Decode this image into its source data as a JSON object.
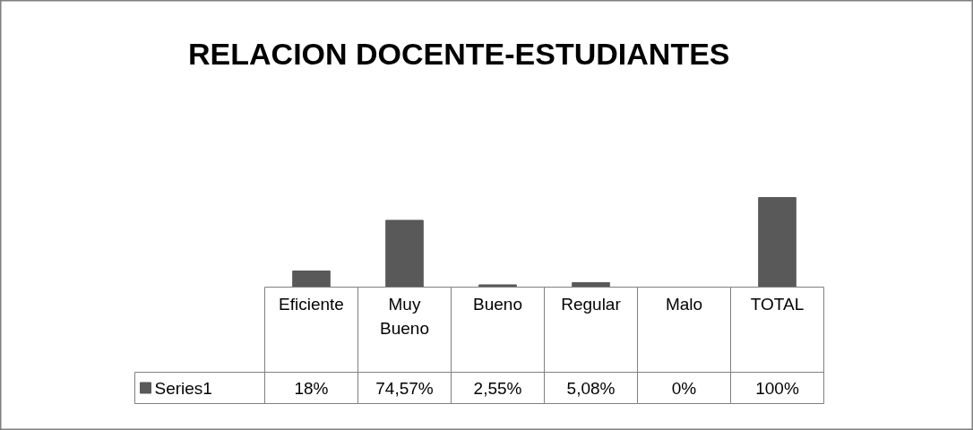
{
  "chart_data": {
    "type": "bar",
    "title": "RELACION DOCENTE-ESTUDIANTES",
    "categories": [
      "Eficiente",
      "Muy Bueno",
      "Bueno",
      "Regular",
      "Malo",
      "TOTAL"
    ],
    "series": [
      {
        "name": "Series1",
        "color": "#595959",
        "values": [
          18,
          74.57,
          2.55,
          5.08,
          0,
          100
        ],
        "value_labels": [
          "18%",
          "74,57%",
          "2,55%",
          "5,08%",
          "0%",
          "100%"
        ]
      }
    ],
    "legend": "bottom"
  }
}
